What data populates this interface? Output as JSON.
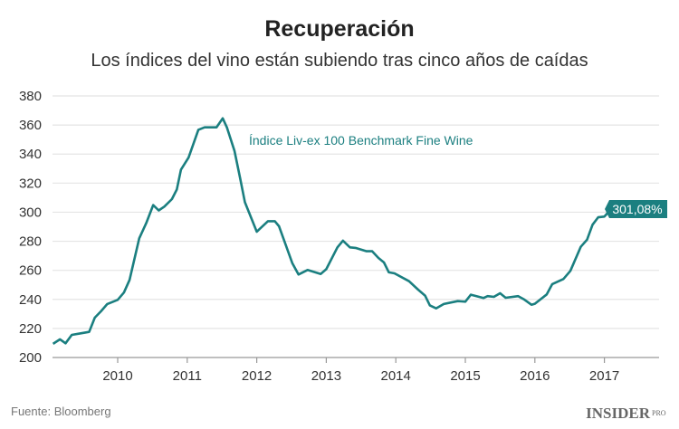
{
  "chart_data": {
    "type": "line",
    "title": "Recuperación",
    "subtitle": "Los índices del vino están subiendo tras cinco años de caídas",
    "xlabel": "",
    "ylabel": "",
    "ylim": [
      200,
      380
    ],
    "yticks": [
      "200",
      "220",
      "240",
      "260",
      "280",
      "300",
      "320",
      "340",
      "360",
      "380"
    ],
    "xticks": [
      "2010",
      "2011",
      "2012",
      "2013",
      "2014",
      "2015",
      "2016",
      "2017"
    ],
    "grid": true,
    "color": "#1b7f80",
    "series": [
      {
        "name": "Índice Liv-ex 100 Benchmark Fine Wine",
        "x": [
          2009.07,
          2009.17,
          2009.25,
          2009.34,
          2009.44,
          2009.59,
          2009.67,
          2009.76,
          2009.85,
          2010.0,
          2010.09,
          2010.17,
          2010.31,
          2010.41,
          2010.51,
          2010.59,
          2010.67,
          2010.78,
          2010.85,
          2010.91,
          2011.02,
          2011.16,
          2011.25,
          2011.42,
          2011.51,
          2011.57,
          2011.68,
          2011.76,
          2011.83,
          2012.0,
          2012.16,
          2012.26,
          2012.32,
          2012.51,
          2012.6,
          2012.73,
          2012.92,
          2013.0,
          2013.16,
          2013.24,
          2013.34,
          2013.42,
          2013.58,
          2013.66,
          2013.75,
          2013.83,
          2013.9,
          2013.98,
          2014.19,
          2014.32,
          2014.42,
          2014.49,
          2014.58,
          2014.69,
          2014.89,
          2015.0,
          2015.08,
          2015.26,
          2015.32,
          2015.41,
          2015.5,
          2015.58,
          2015.76,
          2015.84,
          2015.95,
          2016.0,
          2016.17,
          2016.25,
          2016.41,
          2016.51,
          2016.66,
          2016.75,
          2016.83,
          2016.91,
          2017.0,
          2017.07
        ],
        "values": [
          209.4,
          212.5,
          209.8,
          215.6,
          216.4,
          217.6,
          227.4,
          231.8,
          236.8,
          239.7,
          244.7,
          253.4,
          282.0,
          292.4,
          304.9,
          301.2,
          303.8,
          309.0,
          315.6,
          329.3,
          337.6,
          356.7,
          358.4,
          358.4,
          364.6,
          358.4,
          342.2,
          323.5,
          306.9,
          286.6,
          293.8,
          293.8,
          290.3,
          265.0,
          257.1,
          260.2,
          257.5,
          260.8,
          275.8,
          280.4,
          275.8,
          275.4,
          273.1,
          273.1,
          268.5,
          265.4,
          258.6,
          257.9,
          252.5,
          246.7,
          242.6,
          235.9,
          233.8,
          236.8,
          238.8,
          238.4,
          243.2,
          240.9,
          242.2,
          241.7,
          244.2,
          241.1,
          242.2,
          240.1,
          236.3,
          237.0,
          243.4,
          250.5,
          254.0,
          259.6,
          276.2,
          281.0,
          291.4,
          296.5,
          297.0,
          300.7
        ]
      }
    ],
    "annotations": {
      "series_label": "Índice Liv-ex 100 Benchmark Fine Wine",
      "last_value_label": "301,08%"
    }
  },
  "footer": {
    "source": "Fuente: Bloomberg",
    "logo_main": "INSIDER",
    "logo_sub": "PRO"
  }
}
